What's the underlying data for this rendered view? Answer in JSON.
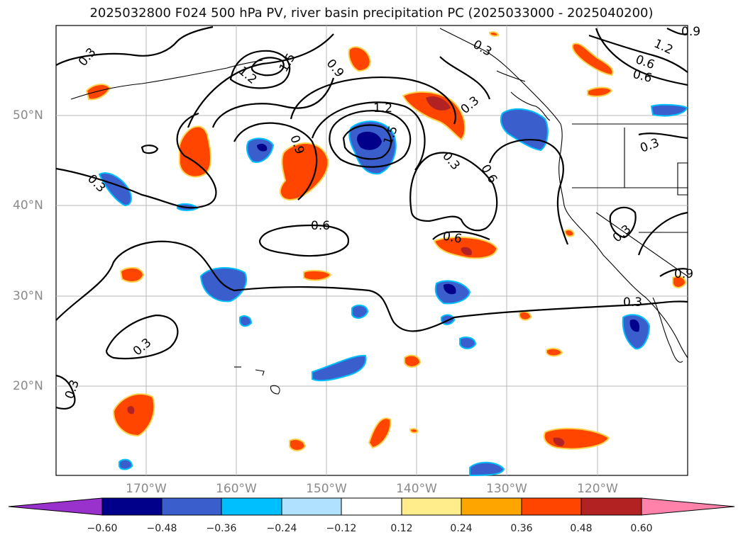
{
  "title": "2025032800 F024 500 hPa PV, river basin precipitation PC (2025033000 - 2025040200)",
  "map": {
    "lat_labels": [
      "50°N",
      "40°N",
      "30°N",
      "20°N"
    ],
    "lon_labels": [
      "170°W",
      "160°W",
      "150°W",
      "140°W",
      "130°W",
      "120°W"
    ],
    "contour_labels": [
      "0.3",
      "1.5",
      "1.2",
      "0.9",
      "0.3",
      "1.2",
      "0.9",
      "0.6",
      "1.2",
      "1.5",
      "0.6",
      "0.3",
      "0.3",
      "0.6",
      "0.9",
      "0.3",
      "0.6",
      "0.6",
      "0.3",
      "0.3",
      "0.3",
      "0.3",
      "0.3",
      "0.9"
    ],
    "contour_color": "#000000",
    "coastline_color": "#000000",
    "grid_color": "#b0b0b0"
  },
  "colorbar": {
    "ticks": [
      "−0.60",
      "−0.48",
      "−0.36",
      "−0.24",
      "−0.12",
      "0.12",
      "0.24",
      "0.36",
      "0.48",
      "0.60"
    ],
    "colors": [
      "#9932cc",
      "#00008b",
      "#3a5fcd",
      "#00bfff",
      "#b0e2ff",
      "#ffffff",
      "#ffec8b",
      "#ffa500",
      "#ff4500",
      "#b22222",
      "#ff82ab"
    ]
  }
}
